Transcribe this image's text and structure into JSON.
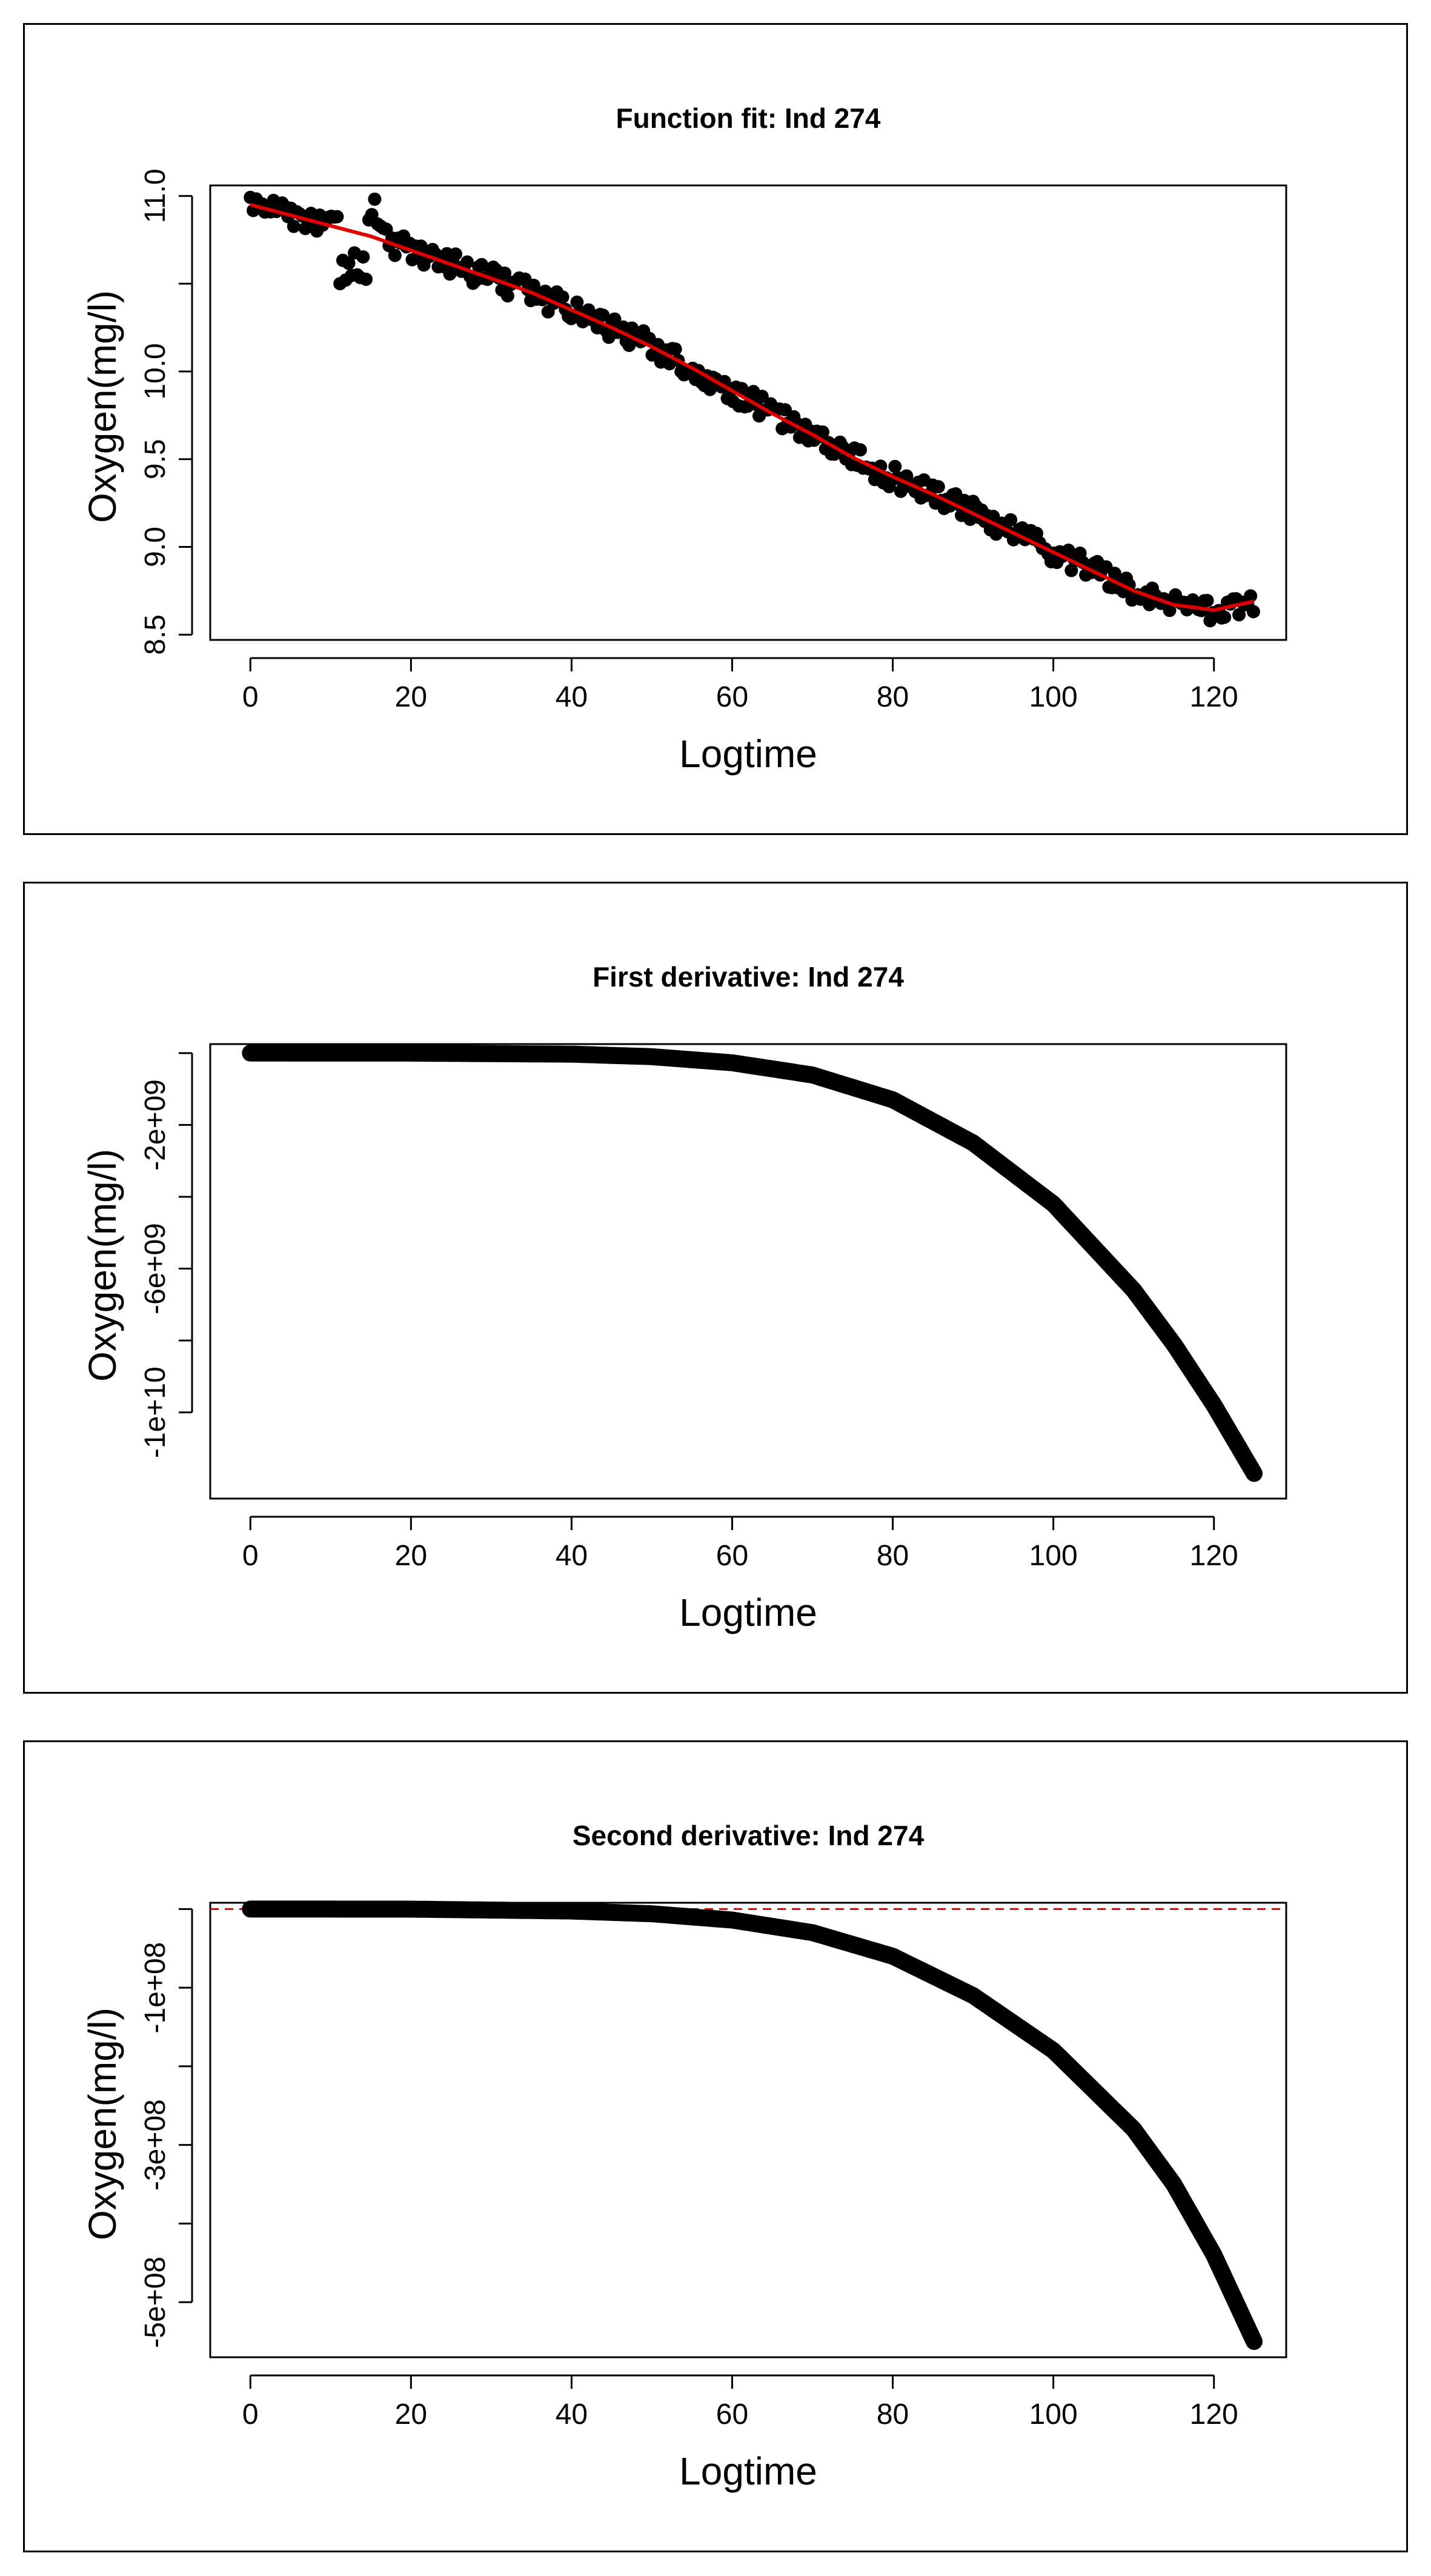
{
  "chart_data": [
    {
      "type": "scatter",
      "title": "Function fit: Ind 274",
      "xlabel": "Logtime",
      "ylabel": "Oxygen(mg/l)",
      "xlim": [
        -5,
        129
      ],
      "ylim": [
        8.47,
        11.06
      ],
      "xticks": [
        "0",
        "20",
        "40",
        "60",
        "80",
        "100",
        "120"
      ],
      "yticks": [
        "8.5",
        "9.0",
        "9.5",
        "10.0",
        "",
        "11.0"
      ],
      "ytick_values": [
        8.5,
        9.0,
        9.5,
        10.0,
        10.5,
        11.0
      ],
      "point_color": "#000000",
      "fit_color": "#e00000",
      "series": [
        {
          "values_x": [
            0,
            5,
            10,
            15,
            20,
            25,
            30,
            35,
            40,
            45,
            50,
            55,
            60,
            65,
            70,
            75,
            80,
            85,
            90,
            95,
            100,
            105,
            110,
            115,
            120,
            125
          ],
          "values_y": [
            10.95,
            10.89,
            10.83,
            10.77,
            10.69,
            10.61,
            10.53,
            10.45,
            10.35,
            10.25,
            10.14,
            10.02,
            9.89,
            9.76,
            9.64,
            9.51,
            9.4,
            9.3,
            9.19,
            9.08,
            8.97,
            8.86,
            8.75,
            8.67,
            8.64,
            8.69
          ]
        }
      ],
      "notes": "fit curve traced from the red line; scatter points represent logged oxygen readings around it"
    },
    {
      "type": "line",
      "title": "First derivative: Ind  274",
      "xlabel": "Logtime",
      "ylabel": "Oxygen(mg/l)",
      "xlim": [
        -5,
        129
      ],
      "ylim": [
        -12400000000.0,
        250000000.0
      ],
      "xticks": [
        "0",
        "20",
        "40",
        "60",
        "80",
        "100",
        "120"
      ],
      "yticks": [
        "-1e+10",
        "",
        "-6e+09",
        "",
        "-2e+09",
        ""
      ],
      "ytick_values": [
        -10000000000.0,
        -8000000000.0,
        -6000000000.0,
        -4000000000.0,
        -2000000000.0,
        0
      ],
      "x": [
        0,
        20,
        40,
        50,
        60,
        70,
        80,
        90,
        100,
        110,
        115,
        120,
        125
      ],
      "y": [
        0,
        -2000000.0,
        -30000000.0,
        -100000000.0,
        -270000000.0,
        -610000000.0,
        -1300000000.0,
        -2500000000.0,
        -4200000000.0,
        -6600000000.0,
        -8100000000.0,
        -9800000000.0,
        -11700000000.0
      ]
    },
    {
      "type": "line",
      "title": "Second derivative: Ind 274",
      "xlabel": "Logtime",
      "ylabel": "Oxygen(mg/l)",
      "xlim": [
        -5,
        129
      ],
      "ylim": [
        -570000000.0,
        8000000.0
      ],
      "xticks": [
        "0",
        "20",
        "40",
        "60",
        "80",
        "100",
        "120"
      ],
      "yticks": [
        "-5e+08",
        "",
        "-3e+08",
        "",
        "-1e+08",
        ""
      ],
      "ytick_values": [
        -500000000.0,
        -400000000.0,
        -300000000.0,
        -200000000.0,
        -100000000.0,
        0
      ],
      "reference_line": {
        "y": 0,
        "color": "#e00000",
        "style": "dashed"
      },
      "x": [
        0,
        20,
        40,
        50,
        60,
        70,
        80,
        90,
        100,
        110,
        115,
        120,
        125
      ],
      "y": [
        0,
        -100000.0,
        -2500000.0,
        -6000000.0,
        -14000000.0,
        -30000000.0,
        -60000000.0,
        -110000000.0,
        -180000000.0,
        -280000000.0,
        -350000000.0,
        -440000000.0,
        -550000000.0
      ]
    }
  ]
}
